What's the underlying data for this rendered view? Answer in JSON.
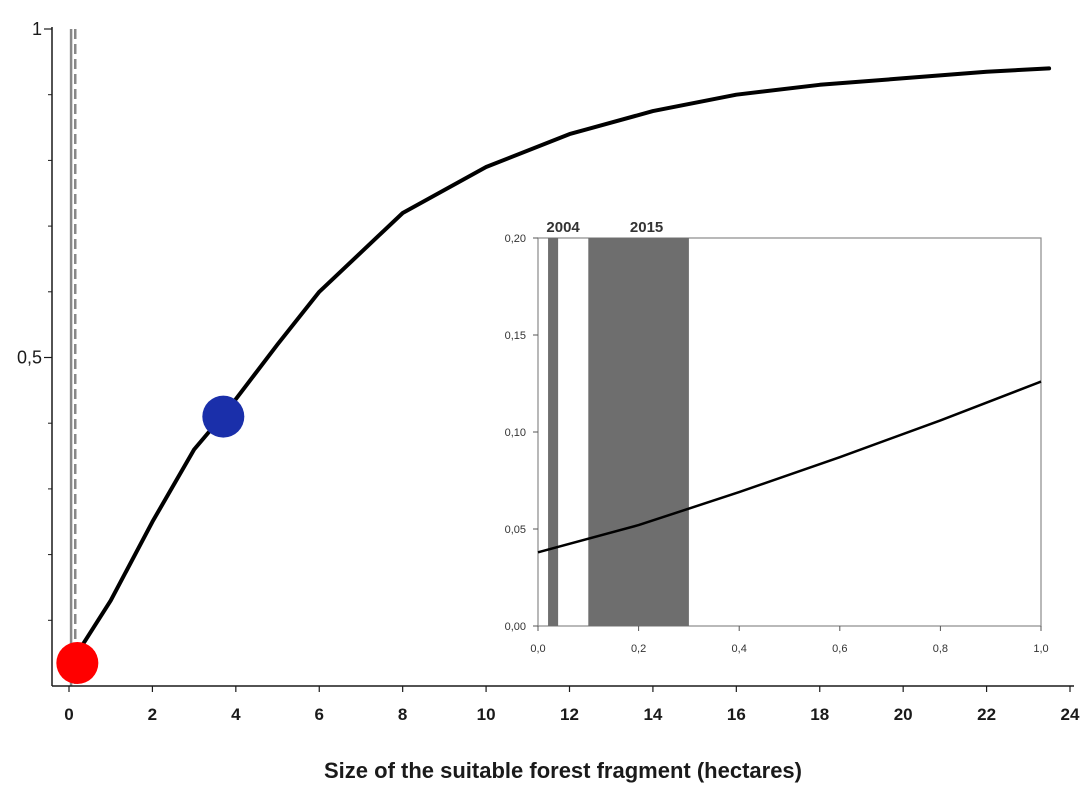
{
  "chart_data": [
    {
      "type": "line",
      "xlabel": "Size of the suitable forest fragment (hectares)",
      "ylabel": "",
      "xlim": [
        0,
        24
      ],
      "ylim": [
        0,
        1
      ],
      "x_ticks": [
        "0",
        "2",
        "4",
        "6",
        "8",
        "10",
        "12",
        "14",
        "16",
        "18",
        "20",
        "22",
        "24"
      ],
      "y_ticks": [
        "0,5",
        "1"
      ],
      "grid": false,
      "legend": "none",
      "series": [
        {
          "color": "#000000",
          "x": [
            0,
            0.2,
            1,
            2,
            3,
            3.8,
            5,
            6,
            8,
            10,
            12,
            14,
            16,
            18,
            20,
            22,
            23.5
          ],
          "y": [
            0.035,
            0.05,
            0.13,
            0.25,
            0.36,
            0.42,
            0.52,
            0.6,
            0.72,
            0.79,
            0.84,
            0.875,
            0.9,
            0.915,
            0.925,
            0.935,
            0.94
          ]
        }
      ],
      "points": [
        {
          "x": 0.2,
          "y": 0.035,
          "color": "#ff0000"
        },
        {
          "x": 3.7,
          "y": 0.41,
          "color": "#1a2faa"
        }
      ],
      "reference_lines": [
        {
          "x": 0.05,
          "style": "solid",
          "color": "#888888"
        },
        {
          "x": 0.15,
          "style": "dashed",
          "color": "#888888"
        }
      ]
    },
    {
      "type": "line",
      "xlabel": "",
      "ylabel": "",
      "xlim": [
        0,
        1
      ],
      "ylim": [
        0,
        0.2
      ],
      "x_ticks": [
        "0,0",
        "0,2",
        "0,4",
        "0,6",
        "0,8",
        "1,0"
      ],
      "y_ticks": [
        "0,00",
        "0,05",
        "0,10",
        "0,15",
        "0,20"
      ],
      "grid": false,
      "bands": [
        {
          "label": "2004",
          "x0": 0.02,
          "x1": 0.04,
          "color": "#6e6e6e"
        },
        {
          "label": "2015",
          "x0": 0.1,
          "x1": 0.3,
          "color": "#6e6e6e"
        }
      ],
      "series": [
        {
          "color": "#000000",
          "x": [
            0,
            0.2,
            0.4,
            0.6,
            0.8,
            1.0
          ],
          "y": [
            0.038,
            0.052,
            0.069,
            0.087,
            0.106,
            0.126
          ]
        }
      ]
    }
  ]
}
